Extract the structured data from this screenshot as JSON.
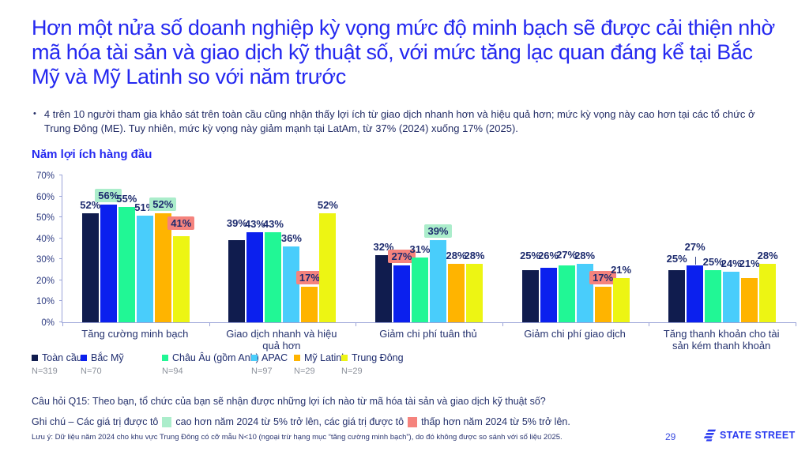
{
  "slide": {
    "title": "Hơn một nửa số doanh nghiệp kỳ vọng mức độ minh bạch sẽ được cải thiện nhờ mã hóa tài sản và giao dịch kỹ thuật số, với mức tăng lạc quan đáng kể tại Bắc Mỹ và Mỹ Latinh so với năm trước",
    "bullet_marker": "•",
    "bullet": "4 trên 10 người tham gia khảo sát trên toàn cầu cũng nhận thấy lợi ích từ giao dịch nhanh hơn và hiệu quả hơn; mức kỳ vọng này cao hơn tại các tổ chức ở Trung Đông (ME). Tuy nhiên, mức kỳ vọng này giảm mạnh tại LatAm, từ 37% (2024) xuống 17% (2025).",
    "section_label": "Năm lợi ích hàng đầu",
    "question": "Câu hỏi Q15: Theo bạn, tổ chức của bạn sẽ nhận được những lợi ích nào từ mã hóa tài sản và giao dịch kỹ thuật số?",
    "note_part1": "Ghi chú – Các giá trị được tô",
    "note_part2": "cao hơn năm 2024 từ 5% trở lên, các giá trị được tô",
    "note_part3": "thấp hơn năm 2024 từ 5% trở lên.",
    "small_note": "Lưu ý: Dữ liệu năm 2024 cho khu vực Trung Đông có cỡ mẫu N<10 (ngoại trừ hạng mục “tăng cường minh bạch”), do đó không được so sánh với số liệu 2025.",
    "page_number": "29",
    "logo_text": "STATE STREET"
  },
  "colors": {
    "title_blue": "#2428F0",
    "axis": "#9AA3D8",
    "label_navy": "#1D2B6E",
    "highlight_up": "#ABEDCB",
    "highlight_down": "#F5837D",
    "logo_blue": "#2B3BF0"
  },
  "chart_data": {
    "type": "bar",
    "title": "Năm lợi ích hàng đầu",
    "xlabel": "",
    "ylabel": "",
    "ylim": [
      0,
      70
    ],
    "grid": false,
    "legend_position": "bottom",
    "y_ticks": [
      "0%",
      "10%",
      "20%",
      "30%",
      "40%",
      "50%",
      "60%",
      "70%"
    ],
    "categories": [
      "Tăng cường minh bạch",
      "Giao dịch nhanh và hiệu quả hơn",
      "Giảm chi phí tuân thủ",
      "Giảm chi phí giao dịch",
      "Tăng thanh khoản cho tài sản kém thanh khoản"
    ],
    "series": [
      {
        "name": "Toàn cầu",
        "n": "N=319",
        "color": "#101C4E",
        "values": [
          52,
          39,
          32,
          25,
          25
        ]
      },
      {
        "name": "Bắc Mỹ",
        "n": "N=70",
        "color": "#0B20EE",
        "values": [
          56,
          43,
          27,
          26,
          27
        ]
      },
      {
        "name": "Châu Âu (gồm Anh)",
        "n": "N=94",
        "color": "#21F795",
        "values": [
          55,
          43,
          31,
          27,
          25
        ]
      },
      {
        "name": "APAC",
        "n": "N=97",
        "color": "#49CDFB",
        "values": [
          51,
          36,
          39,
          28,
          24
        ]
      },
      {
        "name": "Mỹ Latinh",
        "n": "N=29",
        "color": "#FFB400",
        "values": [
          52,
          17,
          28,
          17,
          21
        ]
      },
      {
        "name": "Trung Đông",
        "n": "N=29",
        "color": "#EDF513",
        "values": [
          41,
          52,
          28,
          21,
          28
        ]
      }
    ],
    "highlights": [
      {
        "series": 1,
        "category": 0,
        "type": "up"
      },
      {
        "series": 4,
        "category": 0,
        "type": "up"
      },
      {
        "series": 5,
        "category": 0,
        "type": "down"
      },
      {
        "series": 4,
        "category": 1,
        "type": "down"
      },
      {
        "series": 1,
        "category": 2,
        "type": "down"
      },
      {
        "series": 3,
        "category": 2,
        "type": "up"
      },
      {
        "series": 4,
        "category": 3,
        "type": "down"
      }
    ],
    "label_offsets": [
      {
        "series": 0,
        "category": 1,
        "dy": 11
      },
      {
        "series": 5,
        "category": 0,
        "dy": 5
      },
      {
        "series": 0,
        "category": 3,
        "dy": 8
      },
      {
        "series": 1,
        "category": 3,
        "dy": 5
      },
      {
        "series": 2,
        "category": 3,
        "dy": 3
      },
      {
        "series": 0,
        "category": 4,
        "dy": 4
      },
      {
        "series": 1,
        "category": 4,
        "dy": 13,
        "leader": true
      },
      {
        "series": 4,
        "category": 4,
        "dy": 8
      }
    ]
  }
}
